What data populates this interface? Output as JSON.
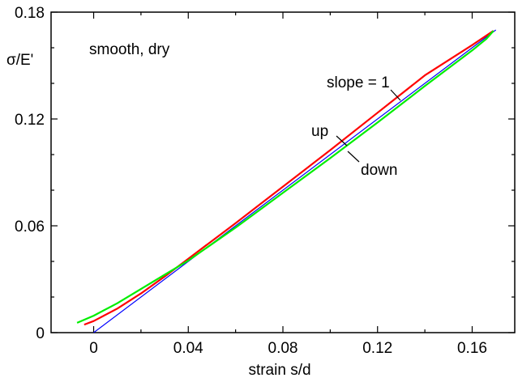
{
  "chart_data": {
    "type": "line",
    "xlabel": "strain s/d",
    "ylabel": "σ/E'",
    "xlim": [
      -0.018,
      0.178
    ],
    "ylim": [
      0,
      0.18
    ],
    "x_ticks": [
      {
        "value": 0,
        "label": "0"
      },
      {
        "value": 0.04,
        "label": "0.04"
      },
      {
        "value": 0.08,
        "label": "0.08"
      },
      {
        "value": 0.12,
        "label": "0.12"
      },
      {
        "value": 0.16,
        "label": "0.16"
      }
    ],
    "y_ticks": [
      {
        "value": 0,
        "label": "0"
      },
      {
        "value": 0.06,
        "label": "0.06"
      },
      {
        "value": 0.12,
        "label": "0.12"
      },
      {
        "value": 0.18,
        "label": "0.18"
      }
    ],
    "x_minor_step": 0.02,
    "y_minor_step": 0.02,
    "grid": false,
    "annotations": {
      "condition": "smooth, dry",
      "slope": "slope = 1",
      "up": "up",
      "down": "down"
    },
    "series": [
      {
        "key": "slope",
        "color": "#0000ff",
        "x": [
          0,
          0.17
        ],
        "y": [
          0,
          0.17
        ]
      },
      {
        "key": "up",
        "color": "#ff0000",
        "x": [
          -0.004,
          0.0,
          0.01,
          0.02,
          0.03,
          0.04,
          0.06,
          0.08,
          0.1,
          0.12,
          0.14,
          0.16,
          0.169
        ],
        "y": [
          0.0045,
          0.0065,
          0.0135,
          0.022,
          0.0315,
          0.0415,
          0.0615,
          0.082,
          0.1025,
          0.1235,
          0.1445,
          0.1615,
          0.1695
        ]
      },
      {
        "key": "down",
        "color": "#00ee00",
        "x": [
          -0.007,
          0.0,
          0.01,
          0.02,
          0.03,
          0.04,
          0.06,
          0.08,
          0.1,
          0.12,
          0.14,
          0.16,
          0.166,
          0.169
        ],
        "y": [
          0.0055,
          0.0095,
          0.0165,
          0.0245,
          0.0325,
          0.0405,
          0.059,
          0.0785,
          0.098,
          0.118,
          0.1385,
          0.1585,
          0.165,
          0.1695
        ]
      }
    ]
  }
}
